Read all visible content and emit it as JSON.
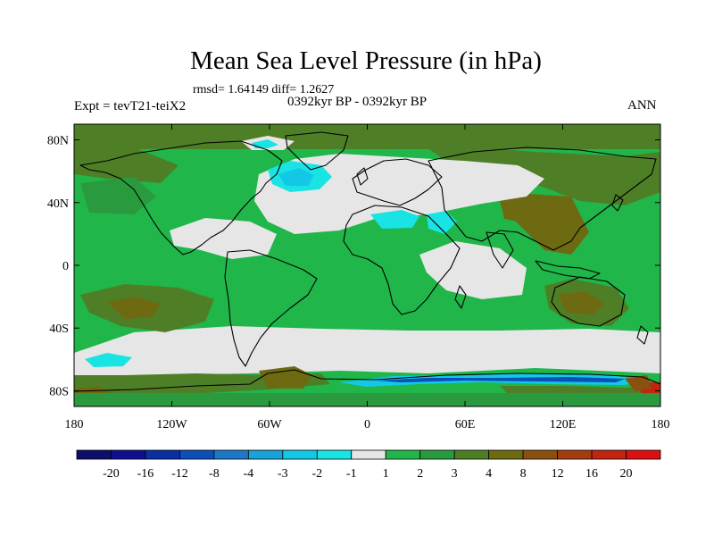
{
  "title": "Mean Sea Level Pressure (in hPa)",
  "stats_line": "rmsd= 1.64149 diff= 1.2627",
  "period": "0392kyr BP - 0392kyr BP",
  "experiment": "Expt = tevT21-teiX2",
  "season": "ANN",
  "lon_ticks": [
    {
      "lon": -180,
      "label": "180"
    },
    {
      "lon": -120,
      "label": "120W"
    },
    {
      "lon": -60,
      "label": "60W"
    },
    {
      "lon": 0,
      "label": "0"
    },
    {
      "lon": 60,
      "label": "60E"
    },
    {
      "lon": 120,
      "label": "120E"
    },
    {
      "lon": 180,
      "label": "180"
    }
  ],
  "lat_ticks": [
    {
      "lat": 80,
      "label": "80N"
    },
    {
      "lat": 40,
      "label": "40N"
    },
    {
      "lat": 0,
      "label": "0"
    },
    {
      "lat": -40,
      "label": "40S"
    },
    {
      "lat": -80,
      "label": "80S"
    }
  ],
  "colorbar": {
    "levels": [
      "-20",
      "-16",
      "-12",
      "-8",
      "-4",
      "-3",
      "-2",
      "-1",
      "1",
      "2",
      "3",
      "4",
      "8",
      "12",
      "16",
      "20"
    ],
    "colors": [
      "#0d0d6b",
      "#10108e",
      "#0a2fa3",
      "#0b4fb8",
      "#1e78c8",
      "#18a3d8",
      "#12c8e6",
      "#19e3e3",
      "#e6e6e6",
      "#20b64a",
      "#2a9a3e",
      "#4e7f26",
      "#6e6a12",
      "#8a5010",
      "#a53c10",
      "#c22410",
      "#dc1010"
    ]
  },
  "colors": {
    "land_fill": "#20b64a",
    "ocean_background": "#20b64a",
    "coastline": "#000000"
  }
}
